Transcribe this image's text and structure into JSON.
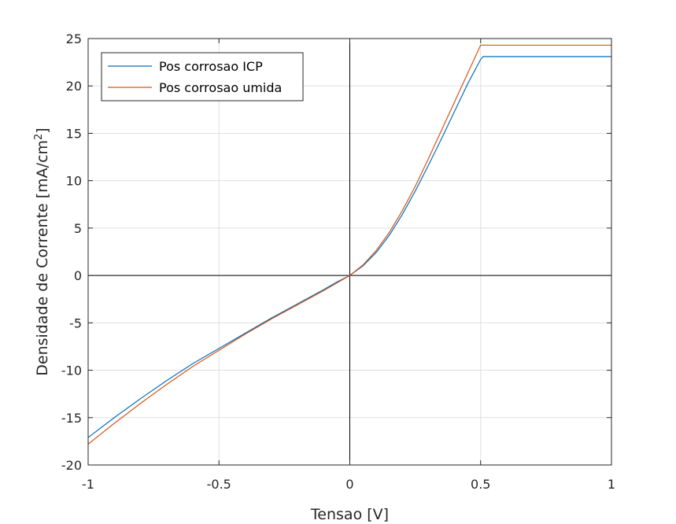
{
  "chart_data": {
    "type": "line",
    "xlabel": "Tensao [V]",
    "ylabel_main": "Densidade de Corrente [mA/cm",
    "ylabel_sup": "2",
    "ylabel_end": "]",
    "xlim": [
      -1,
      1
    ],
    "ylim": [
      -20,
      25
    ],
    "x_ticks": [
      -1,
      -0.5,
      0,
      0.5,
      1
    ],
    "x_tick_labels": [
      "-1",
      "-0.5",
      "0",
      "0.5",
      "1"
    ],
    "y_ticks": [
      -20,
      -15,
      -10,
      -5,
      0,
      5,
      10,
      15,
      20,
      25
    ],
    "y_tick_labels": [
      "-20",
      "-15",
      "-10",
      "-5",
      "0",
      "5",
      "10",
      "15",
      "20",
      "25"
    ],
    "grid": true,
    "legend_position": "top-left",
    "series": [
      {
        "name": "Pos corrosao ICP",
        "color": "#0072BD",
        "x": [
          -1,
          -0.9,
          -0.8,
          -0.7,
          -0.6,
          -0.5,
          -0.4,
          -0.3,
          -0.2,
          -0.1,
          -0.05,
          0,
          0.05,
          0.1,
          0.15,
          0.2,
          0.25,
          0.3,
          0.35,
          0.4,
          0.45,
          0.5,
          0.51,
          0.6,
          0.7,
          0.8,
          0.9,
          1
        ],
        "y": [
          -17.1,
          -15.0,
          -13.0,
          -11.1,
          -9.3,
          -7.7,
          -6.1,
          -4.5,
          -3.0,
          -1.5,
          -0.7,
          0,
          1.0,
          2.4,
          4.2,
          6.4,
          8.9,
          11.6,
          14.4,
          17.3,
          20.2,
          22.8,
          23.1,
          23.1,
          23.1,
          23.1,
          23.1,
          23.1
        ]
      },
      {
        "name": "Pos corrosao umida",
        "color": "#D95319",
        "x": [
          -1,
          -0.9,
          -0.8,
          -0.7,
          -0.6,
          -0.5,
          -0.4,
          -0.3,
          -0.2,
          -0.1,
          -0.05,
          0,
          0.05,
          0.1,
          0.15,
          0.2,
          0.25,
          0.3,
          0.35,
          0.4,
          0.45,
          0.5,
          0.6,
          0.7,
          0.8,
          0.9,
          1
        ],
        "y": [
          -17.8,
          -15.6,
          -13.5,
          -11.5,
          -9.6,
          -7.9,
          -6.2,
          -4.6,
          -3.1,
          -1.6,
          -0.8,
          0,
          1.1,
          2.6,
          4.5,
          6.8,
          9.4,
          12.3,
          15.3,
          18.3,
          21.3,
          24.3,
          24.3,
          24.3,
          24.3,
          24.3,
          24.3
        ]
      }
    ]
  }
}
